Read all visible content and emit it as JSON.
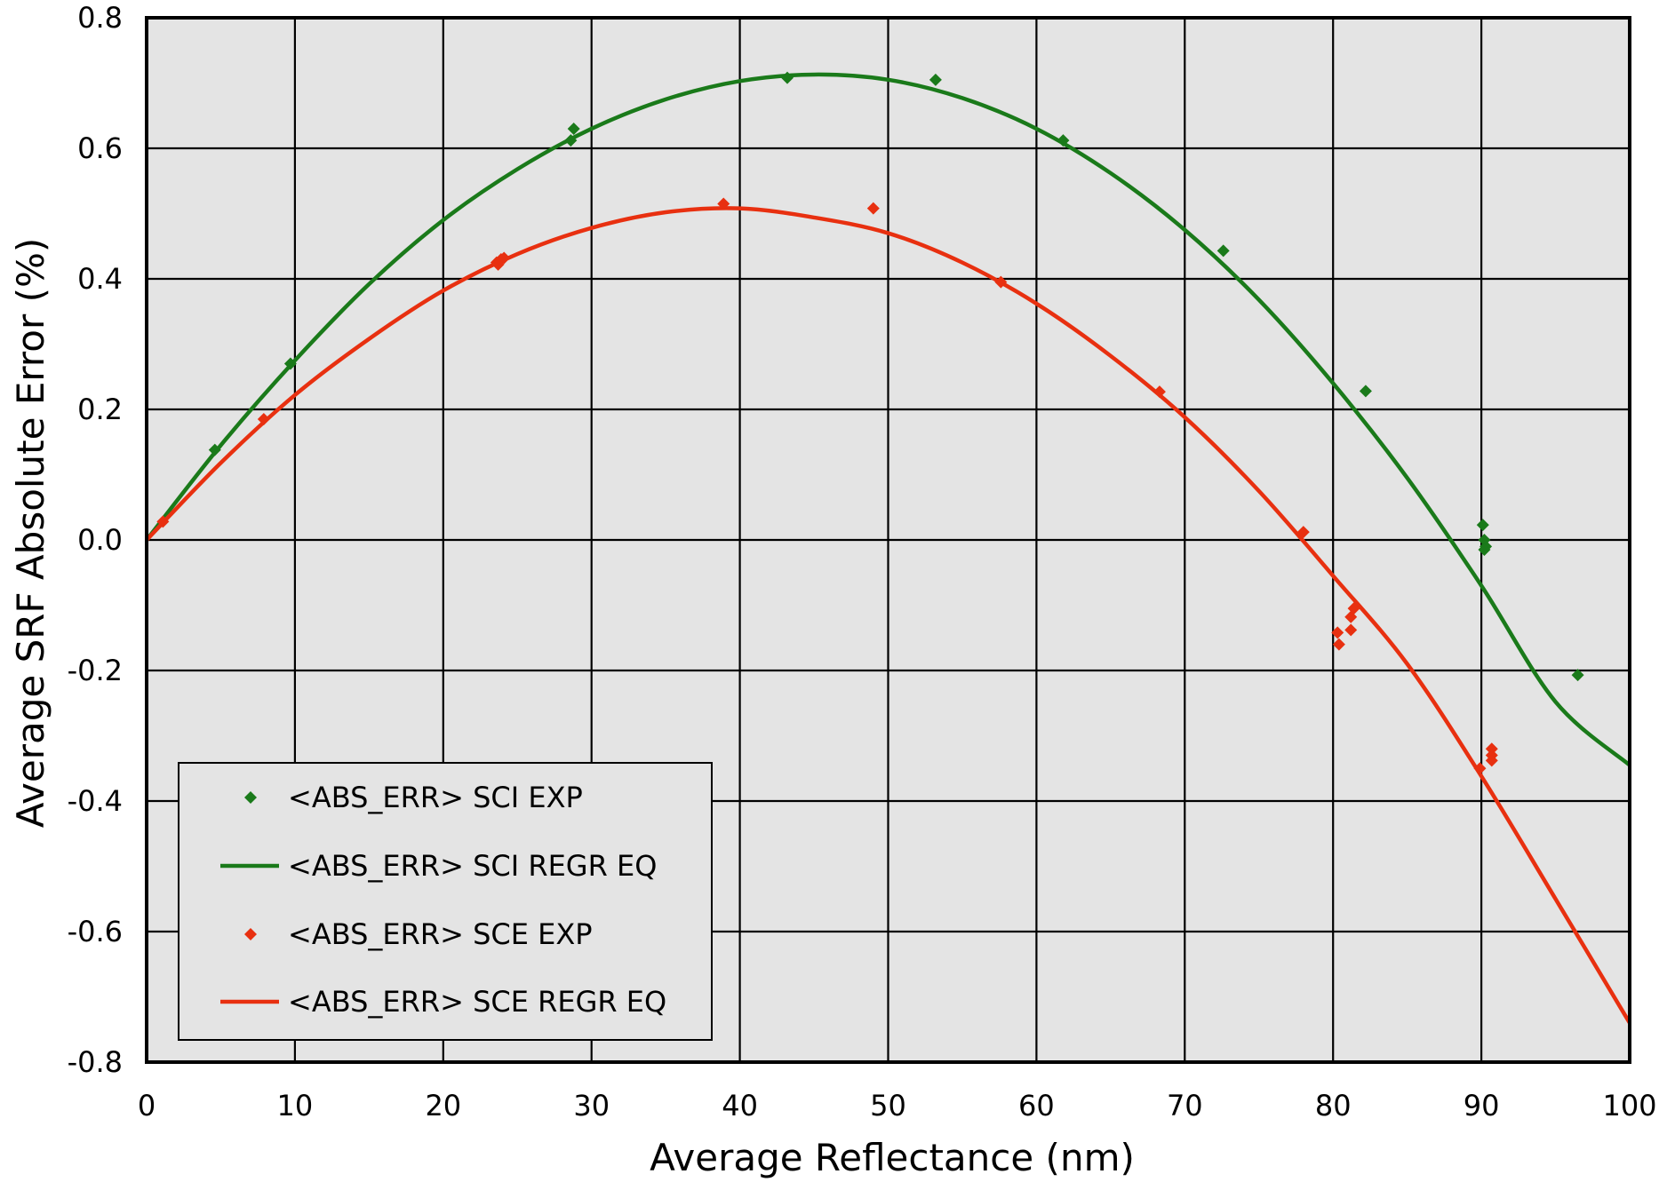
{
  "chart_data": {
    "type": "scatter",
    "title": "",
    "xlabel": "Average Reflectance (nm)",
    "ylabel": "Average SRF Absolute Error (%)",
    "xlim": [
      0,
      100
    ],
    "ylim": [
      -0.8,
      0.8
    ],
    "x_ticks": [
      "0",
      "10",
      "20",
      "30",
      "40",
      "50",
      "60",
      "70",
      "80",
      "90",
      "100"
    ],
    "y_ticks": [
      "0.8",
      "0.6",
      "0.4",
      "0.2",
      "0.0",
      "-0.2",
      "-0.4",
      "-0.6",
      "-0.8"
    ],
    "grid": true,
    "background_color": "#e4e4e4",
    "legend_position": "bottom-left",
    "series": [
      {
        "name": "<ABS_ERR> SCI EXP",
        "kind": "scatter",
        "color": "#1a7a1a",
        "marker": "diamond",
        "points": [
          [
            4.6,
            0.138
          ],
          [
            9.7,
            0.27
          ],
          [
            28.6,
            0.612
          ],
          [
            28.8,
            0.63
          ],
          [
            43.2,
            0.708
          ],
          [
            53.2,
            0.705
          ],
          [
            61.8,
            0.612
          ],
          [
            72.6,
            0.443
          ],
          [
            82.2,
            0.228
          ],
          [
            90.1,
            0.023
          ],
          [
            90.2,
            0.0
          ],
          [
            90.3,
            -0.01
          ],
          [
            90.2,
            -0.015
          ],
          [
            96.5,
            -0.207
          ]
        ]
      },
      {
        "name": "<ABS_ERR> SCI REGR EQ",
        "kind": "line",
        "color": "#1a7a1a",
        "points": [
          [
            0,
            0.0
          ],
          [
            5,
            0.145
          ],
          [
            10,
            0.275
          ],
          [
            15,
            0.392
          ],
          [
            20,
            0.49
          ],
          [
            25,
            0.568
          ],
          [
            30,
            0.63
          ],
          [
            35,
            0.675
          ],
          [
            40,
            0.703
          ],
          [
            45,
            0.713
          ],
          [
            50,
            0.705
          ],
          [
            55,
            0.677
          ],
          [
            60,
            0.63
          ],
          [
            65,
            0.562
          ],
          [
            70,
            0.475
          ],
          [
            75,
            0.368
          ],
          [
            80,
            0.24
          ],
          [
            85,
            0.095
          ],
          [
            90,
            -0.07
          ],
          [
            95,
            -0.248
          ],
          [
            100,
            -0.345
          ]
        ]
      },
      {
        "name": "<ABS_ERR> SCE EXP",
        "kind": "scatter",
        "color": "#e83010",
        "marker": "diamond",
        "points": [
          [
            1.1,
            0.028
          ],
          [
            7.9,
            0.185
          ],
          [
            23.6,
            0.425
          ],
          [
            23.9,
            0.43
          ],
          [
            24.1,
            0.432
          ],
          [
            23.7,
            0.422
          ],
          [
            38.9,
            0.515
          ],
          [
            49.0,
            0.508
          ],
          [
            57.6,
            0.395
          ],
          [
            68.3,
            0.227
          ],
          [
            78.0,
            0.012
          ],
          [
            80.3,
            -0.142
          ],
          [
            80.4,
            -0.16
          ],
          [
            81.2,
            -0.118
          ],
          [
            81.2,
            -0.138
          ],
          [
            81.4,
            -0.105
          ],
          [
            89.9,
            -0.35
          ],
          [
            90.7,
            -0.32
          ],
          [
            90.7,
            -0.33
          ],
          [
            90.7,
            -0.338
          ]
        ]
      },
      {
        "name": "<ABS_ERR> SCE REGR EQ",
        "kind": "line",
        "color": "#e83010",
        "points": [
          [
            0,
            0.0
          ],
          [
            5,
            0.118
          ],
          [
            10,
            0.222
          ],
          [
            15,
            0.308
          ],
          [
            20,
            0.382
          ],
          [
            25,
            0.438
          ],
          [
            30,
            0.478
          ],
          [
            35,
            0.502
          ],
          [
            40,
            0.508
          ],
          [
            45,
            0.494
          ],
          [
            50,
            0.47
          ],
          [
            55,
            0.425
          ],
          [
            60,
            0.362
          ],
          [
            65,
            0.282
          ],
          [
            70,
            0.188
          ],
          [
            75,
            0.075
          ],
          [
            80,
            -0.055
          ],
          [
            85,
            -0.19
          ],
          [
            90,
            -0.362
          ],
          [
            95,
            -0.55
          ],
          [
            100,
            -0.74
          ]
        ]
      }
    ]
  }
}
